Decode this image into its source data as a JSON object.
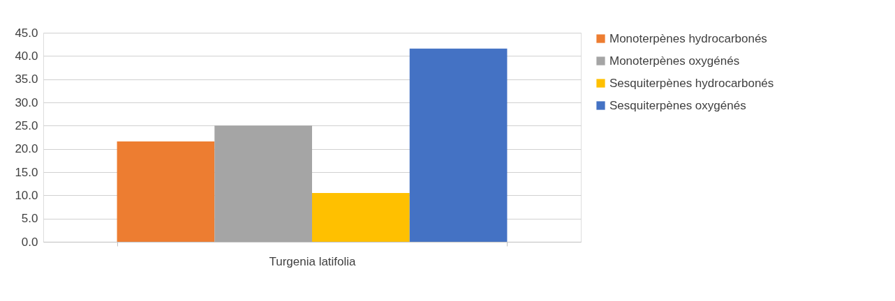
{
  "chart_data": {
    "type": "bar",
    "categories": [
      "Turgenia latifolia"
    ],
    "series": [
      {
        "name": "Monoterpènes hydrocarbonés",
        "color": "#ed7d31",
        "values": [
          21.6
        ]
      },
      {
        "name": "Monoterpènes oxygénés",
        "color": "#a5a5a5",
        "values": [
          25.0
        ]
      },
      {
        "name": "Sesquiterpènes hydrocarbonés",
        "color": "#ffc000",
        "values": [
          10.5
        ]
      },
      {
        "name": "Sesquiterpènes oxygénés",
        "color": "#4472c4",
        "values": [
          41.6
        ]
      }
    ],
    "ylim": [
      0,
      45
    ],
    "yticks": [
      {
        "value": 0,
        "label": "0.0"
      },
      {
        "value": 5,
        "label": "5.0"
      },
      {
        "value": 10,
        "label": "10.0"
      },
      {
        "value": 15,
        "label": "15.0"
      },
      {
        "value": 20,
        "label": "20.0"
      },
      {
        "value": 25,
        "label": "25.0"
      },
      {
        "value": 30,
        "label": "30.0"
      },
      {
        "value": 35,
        "label": "35.0"
      },
      {
        "value": 40,
        "label": "40.0"
      },
      {
        "value": 45,
        "label": "45.0"
      }
    ],
    "grid": "y",
    "legend": "right"
  }
}
